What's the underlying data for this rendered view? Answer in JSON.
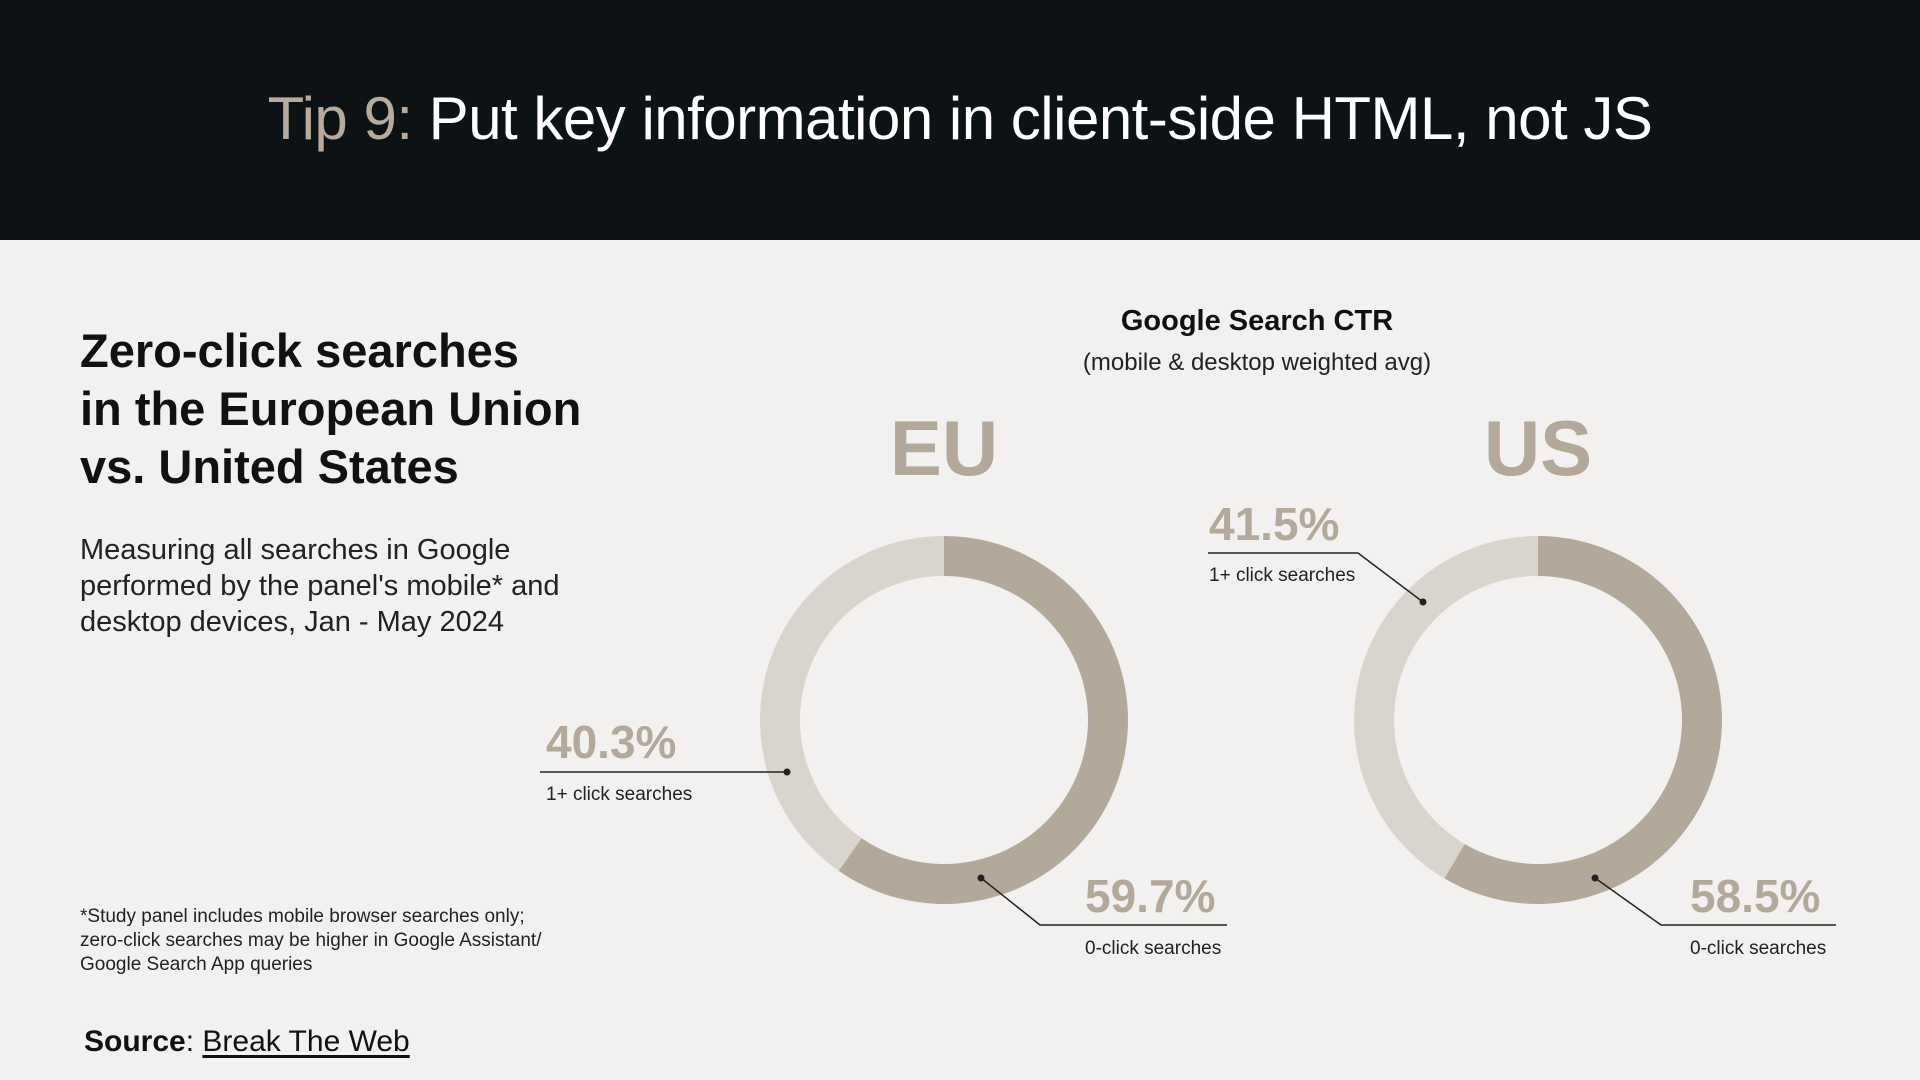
{
  "header": {
    "tip_label": "Tip 9:",
    "title": "Put key information in client-side HTML, not JS"
  },
  "left": {
    "title": "Zero-click searches\nin the European Union\nvs. United States",
    "description": "Measuring all searches in Google\nperformed by the panel's mobile* and\ndesktop devices, Jan - May 2024",
    "footnote": "*Study panel includes mobile browser searches only;\nzero-click searches may be higher in Google Assistant/\nGoogle Search App queries"
  },
  "source": {
    "label": "Source",
    "separator": ": ",
    "link_text": "Break The Web"
  },
  "colors": {
    "zero_click": "#b3a99b",
    "one_plus_click": "#d9d4ce",
    "region_label": "#b3a99b",
    "header_bg": "#0d1215",
    "page_bg": "#f3f1ef"
  },
  "chart_data": [
    {
      "type": "pie",
      "title": "Google Search CTR",
      "subtitle": "(mobile & desktop weighted avg)",
      "region": "EU",
      "slices": [
        {
          "label": "0-click searches",
          "value": 59.7,
          "display": "59.7%"
        },
        {
          "label": "1+ click searches",
          "value": 40.3,
          "display": "40.3%"
        }
      ]
    },
    {
      "type": "pie",
      "region": "US",
      "slices": [
        {
          "label": "0-click searches",
          "value": 58.5,
          "display": "58.5%"
        },
        {
          "label": "1+ click searches",
          "value": 41.5,
          "display": "41.5%"
        }
      ]
    }
  ]
}
